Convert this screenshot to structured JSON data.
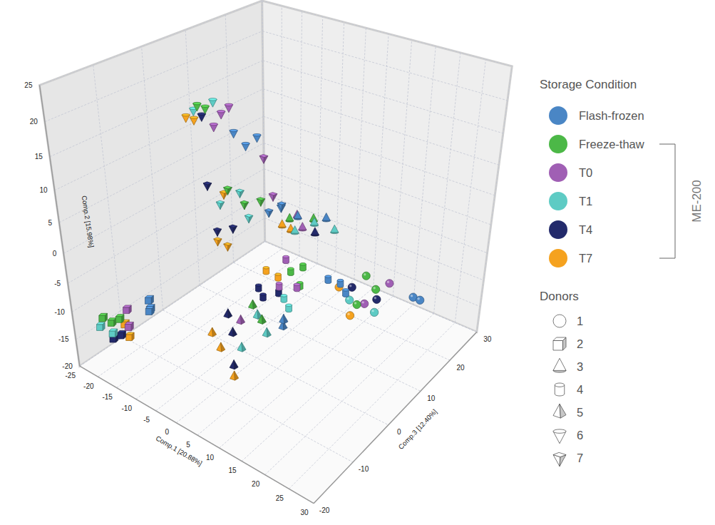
{
  "chart_data": {
    "type": "scatter3d",
    "x_label": "Comp.1 [20.88%]",
    "y_label": "Comp.2 [15.98%]",
    "z_label": "Comp.3 [12.40%]",
    "xlim": [
      -25,
      30
    ],
    "ylim": [
      -20,
      25
    ],
    "zlim": [
      -20,
      30
    ],
    "xticks": [
      -25,
      -20,
      -15,
      -10,
      -5,
      0,
      5,
      10,
      15,
      20,
      25,
      30
    ],
    "yticks": [
      -20,
      -15,
      -10,
      -5,
      0,
      5,
      10,
      15,
      20,
      25
    ],
    "zticks": [
      -20,
      -10,
      0,
      10,
      20,
      30
    ],
    "grid": true,
    "legend": "right",
    "legend_title": "Storage Condition",
    "groups": [
      {
        "label": "ME-200",
        "members": [
          "Freeze-thaw",
          "T0",
          "T1",
          "T4",
          "T7"
        ]
      }
    ],
    "donors": {
      "title": "Donors",
      "items": [
        {
          "name": "1",
          "marker": "sphere"
        },
        {
          "name": "2",
          "marker": "cube"
        },
        {
          "name": "3",
          "marker": "cone"
        },
        {
          "name": "4",
          "marker": "cylinder"
        },
        {
          "name": "5",
          "marker": "pyramid"
        },
        {
          "name": "6",
          "marker": "cone-down"
        },
        {
          "name": "7",
          "marker": "pyramid-down"
        }
      ]
    },
    "series": [
      {
        "name": "Flash-frozen",
        "color": "#4a86c5",
        "x": [
          22,
          23.5,
          -14,
          -13.5,
          -14.5,
          -3,
          3,
          10,
          12,
          14,
          10,
          9,
          -16,
          -14,
          -13,
          -1,
          0,
          -3
        ],
        "y": [
          -10,
          -10,
          -8,
          -9.5,
          -10,
          -2,
          -1,
          -6,
          -6.5,
          -7,
          -7,
          -9,
          10,
          8,
          9,
          3,
          4,
          2
        ],
        "z": [
          18,
          18,
          -12,
          -12.5,
          -11.5,
          15,
          16,
          8,
          9,
          8,
          -4,
          -3,
          12,
          13,
          15,
          8,
          7,
          7
        ],
        "donor": [
          "1",
          "1",
          "2",
          "2",
          "2",
          "3",
          "3",
          "4",
          "4",
          "4",
          "5",
          "5",
          "6",
          "6",
          "6",
          "7",
          "7",
          "7"
        ]
      },
      {
        "name": "Freeze-thaw",
        "color": "#4cb847",
        "x": [
          12,
          15,
          13,
          -21,
          -20,
          -22,
          -5,
          0,
          3,
          5,
          6,
          3,
          6,
          -22,
          -21,
          -10,
          -7,
          -4
        ],
        "y": [
          -9,
          -10,
          -12,
          -13,
          -12.5,
          -12,
          -3,
          -2,
          -6,
          -5,
          -7,
          -7,
          -8,
          14,
          13.5,
          5,
          3,
          4
        ],
        "z": [
          17,
          16,
          13,
          -15,
          -14,
          -16,
          15,
          16,
          6,
          7,
          5,
          -4,
          -5,
          9,
          10,
          4,
          5,
          6
        ],
        "donor": [
          "1",
          "1",
          "1",
          "2",
          "2",
          "2",
          "3",
          "3",
          "4",
          "4",
          "4",
          "5",
          "5",
          "6",
          "6",
          "7",
          "7",
          "7"
        ]
      },
      {
        "name": "T0",
        "color": "#a05fb4",
        "x": [
          16,
          14,
          -19,
          -15,
          -4,
          -1,
          1,
          7,
          2,
          2,
          -18,
          -19,
          -17,
          -5,
          -2
        ],
        "y": [
          -10,
          -12,
          -11,
          -11,
          -2.5,
          -3,
          -5,
          -6,
          -8,
          -9,
          13,
          11,
          14,
          10,
          5
        ],
        "z": [
          19,
          14,
          -13,
          -16,
          16,
          14,
          7,
          3,
          4,
          -6,
          11,
          10,
          12,
          8,
          7
        ],
        "donor": [
          "1",
          "1",
          "2",
          "2",
          "3",
          "3",
          "4",
          "4",
          "4",
          "5",
          "6",
          "6",
          "6",
          "7",
          "7"
        ]
      },
      {
        "name": "T1",
        "color": "#5ecbc4",
        "x": [
          12,
          17,
          -23,
          -21,
          1,
          5,
          -2,
          4,
          6,
          5,
          8,
          4,
          -23,
          -20,
          -12,
          -6,
          -9
        ],
        "y": [
          -11,
          -12,
          -14,
          -15,
          -2,
          -2.5,
          -3.5,
          -9,
          -9.5,
          -7.5,
          -9,
          -12,
          13,
          14.5,
          2,
          1,
          4
        ],
        "z": [
          12,
          13,
          -16,
          -15,
          15,
          16,
          13,
          3,
          2,
          -5,
          -6,
          -8,
          9,
          11,
          4,
          5,
          6
        ],
        "donor": [
          "1",
          "1",
          "2",
          "2",
          "3",
          "3",
          "3",
          "4",
          "4",
          "5",
          "5",
          "5",
          "6",
          "6",
          "7",
          "7",
          "7"
        ]
      },
      {
        "name": "T4",
        "color": "#232a6b",
        "x": [
          11,
          16,
          -21,
          -20,
          2,
          -3,
          -1,
          1,
          -1,
          1,
          3,
          -22,
          -14,
          -13,
          -10
        ],
        "y": [
          -10,
          -11,
          -16,
          -15.5,
          -3,
          -10,
          -10.5,
          -10,
          -9,
          -11,
          -15,
          12,
          5,
          -3,
          -2
        ],
        "z": [
          14,
          15,
          -15,
          -14,
          14,
          4,
          3,
          5,
          -6,
          -7,
          -9,
          10,
          3,
          4,
          5
        ],
        "donor": [
          "1",
          "1",
          "2",
          "2",
          "3",
          "4",
          "4",
          "4",
          "5",
          "5",
          "5",
          "6",
          "7",
          "7",
          "7"
        ]
      },
      {
        "name": "T7",
        "color": "#f5a21f",
        "x": [
          8,
          13,
          -19,
          -20,
          -6,
          -3,
          -2,
          0,
          -3,
          0,
          4,
          -24,
          -23,
          -11,
          -12,
          -10
        ],
        "y": [
          -11,
          -13,
          -16,
          -14,
          -4,
          -3.5,
          -7,
          -8,
          -12,
          -13,
          -16,
          12,
          11.5,
          4,
          -4,
          -4.5
        ],
        "z": [
          14,
          11,
          -13,
          -13,
          14,
          13,
          5,
          6,
          -8,
          -9,
          -10,
          8,
          9,
          4,
          3,
          3.5
        ],
        "donor": [
          "1",
          "1",
          "2",
          "2",
          "3",
          "3",
          "4",
          "4",
          "5",
          "5",
          "5",
          "6",
          "6",
          "7",
          "7",
          "7"
        ]
      }
    ]
  }
}
